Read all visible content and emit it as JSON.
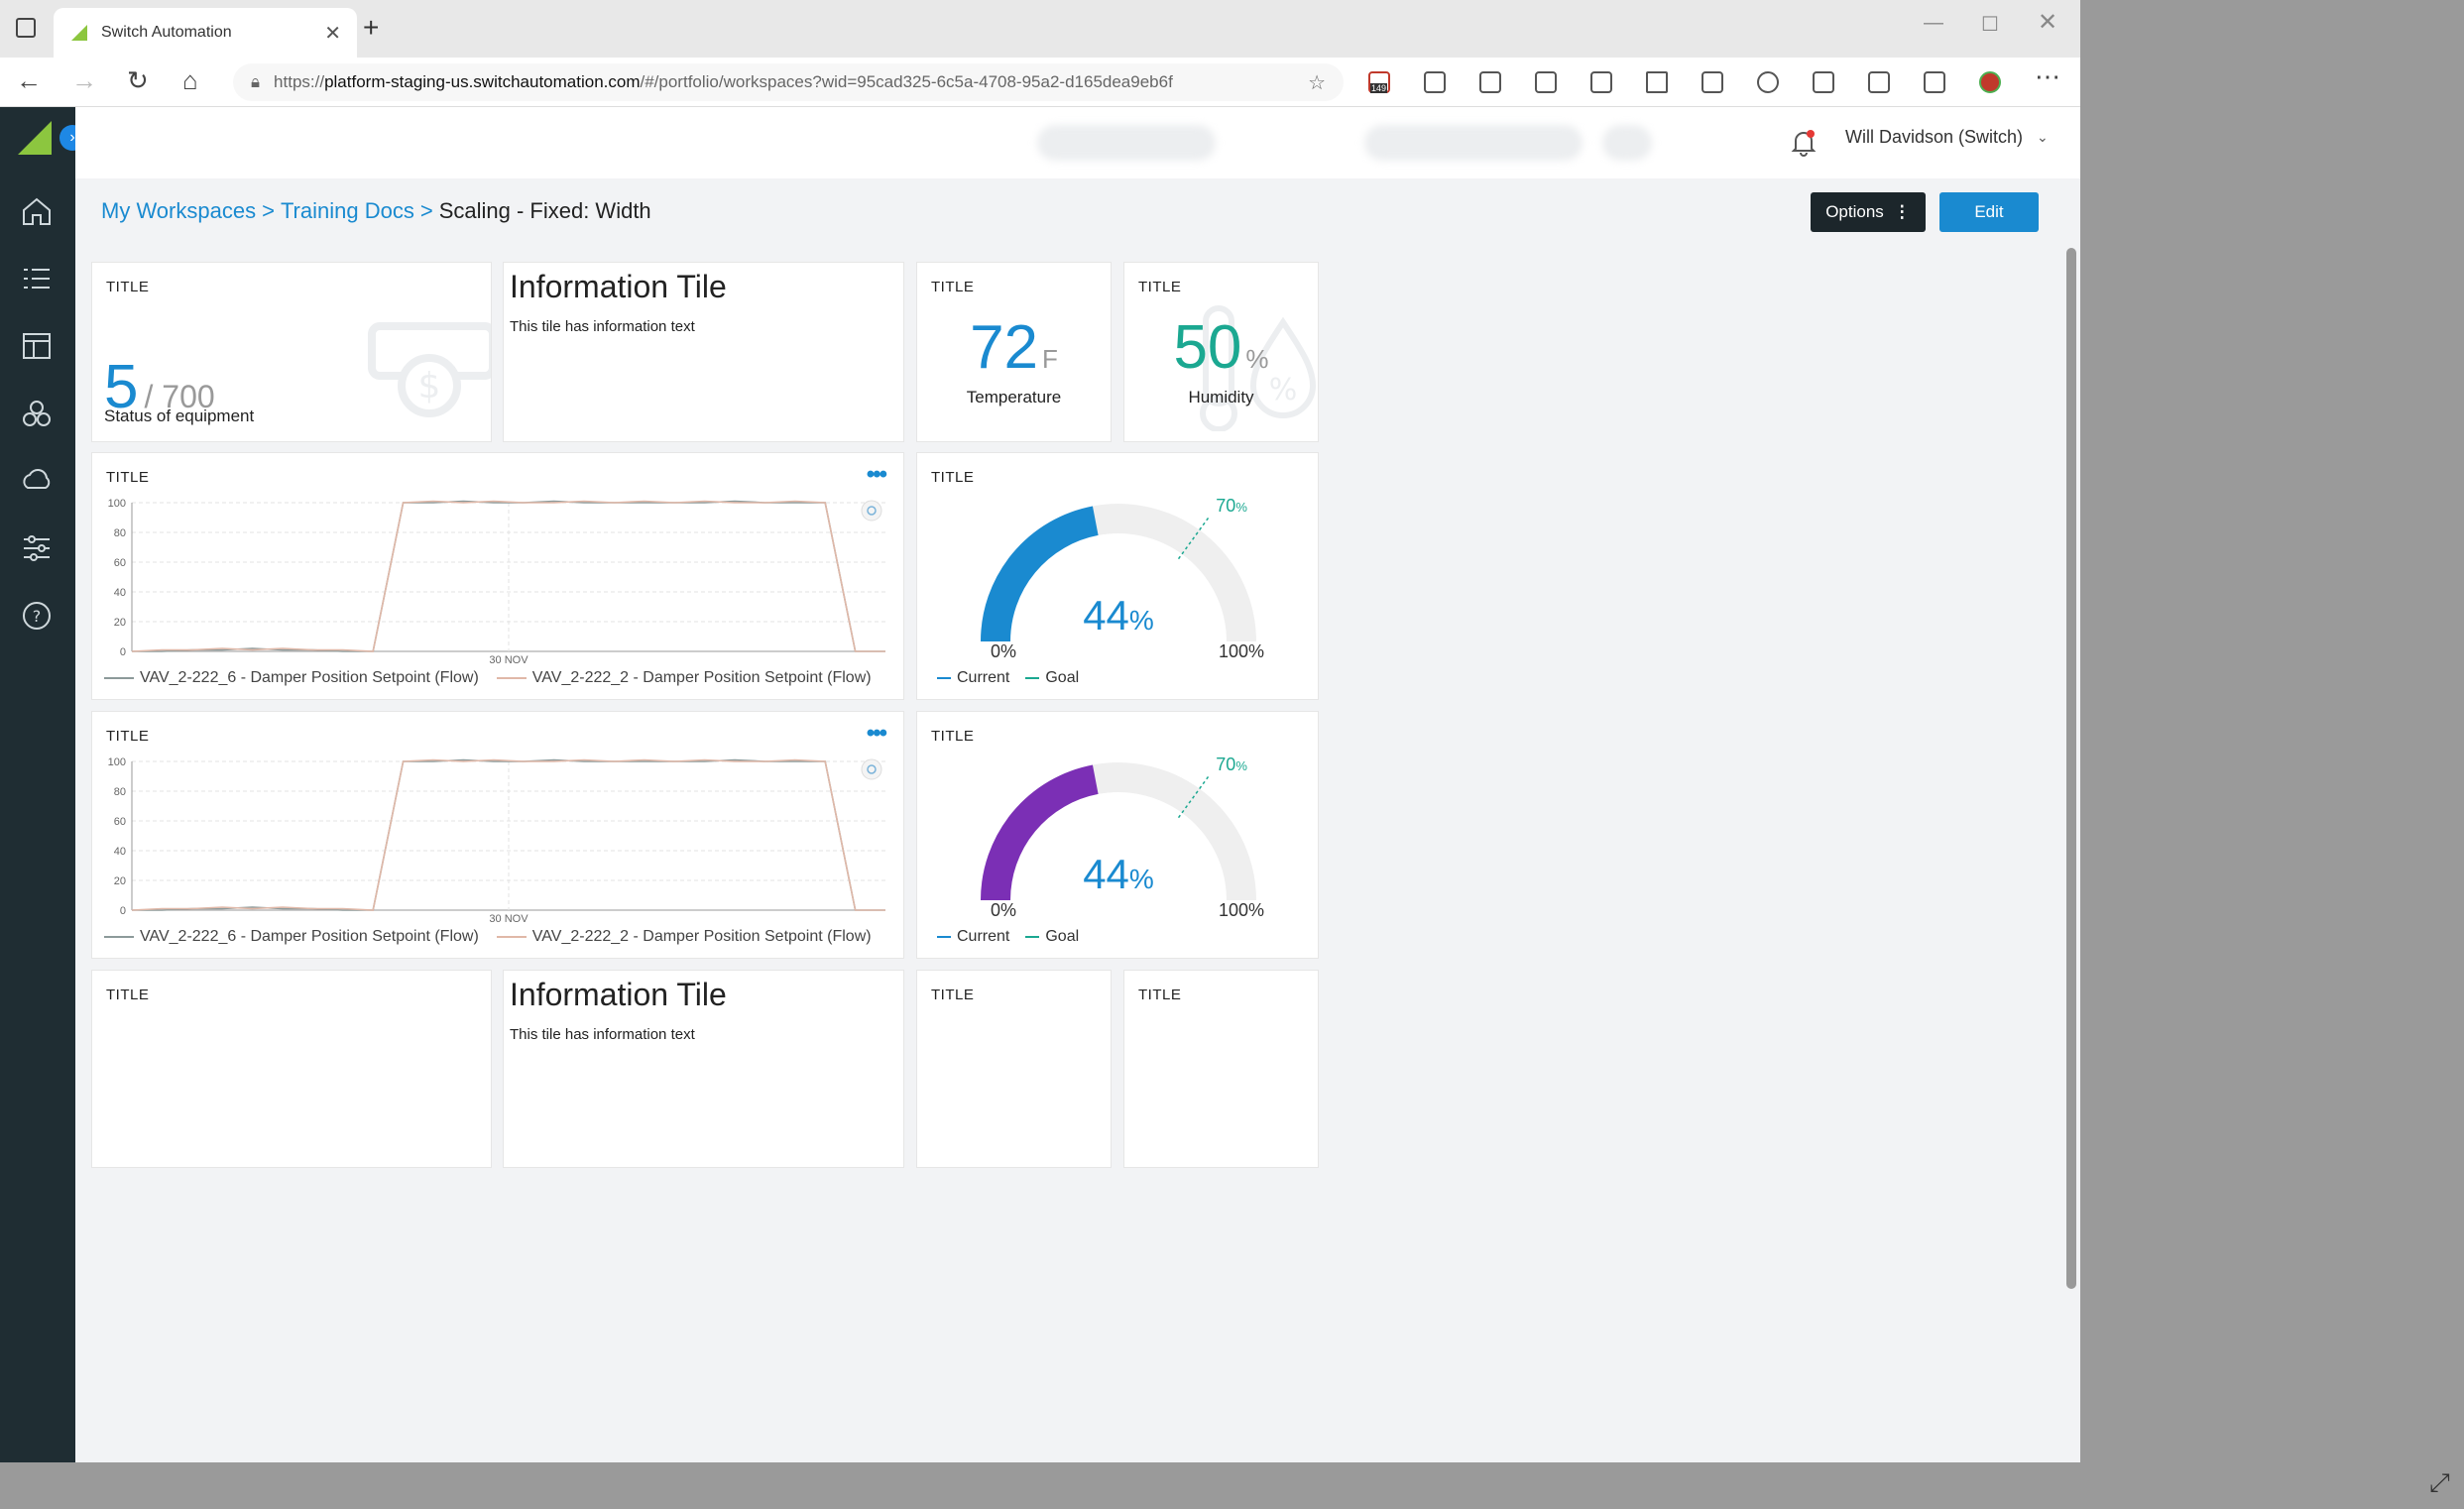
{
  "browser": {
    "tab_title": "Switch Automation",
    "url_prefix": "https://",
    "url_host": "platform-staging-us.switchautomation.com",
    "url_path": "/#/portfolio/workspaces?wid=95cad325-6c5a-4708-95a2-d165dea9eb6f",
    "badge_count": "149"
  },
  "topbar": {
    "user": "Will Davidson (Switch)"
  },
  "breadcrumb": {
    "root": "My Workspaces",
    "folder": "Training Docs",
    "current": "Scaling - Fixed: Width"
  },
  "actions": {
    "options": "Options",
    "edit": "Edit"
  },
  "tiles": {
    "equipment": {
      "title": "TITLE",
      "value": "5",
      "total": "/ 700",
      "label": "Status of equipment"
    },
    "info": {
      "heading": "Information Tile",
      "text": "This tile has information text"
    },
    "temperature": {
      "title": "TITLE",
      "value": "72",
      "unit": "F",
      "label": "Temperature"
    },
    "humidity": {
      "title": "TITLE",
      "value": "50",
      "unit": "%",
      "label": "Humidity"
    },
    "bottom_titles": [
      "TITLE",
      "TITLE",
      "TITLE"
    ]
  },
  "line_charts": [
    {
      "title": "TITLE",
      "color_a": "#8c9a9a",
      "color_b": "#e0b8a8"
    },
    {
      "title": "TITLE",
      "color_a": "#8c9a9a",
      "color_b": "#e0b8a8"
    }
  ],
  "gauges": [
    {
      "title": "TITLE",
      "color": "#1a8ad0"
    },
    {
      "title": "TITLE",
      "color": "#7b2fb5"
    }
  ],
  "chart_data": [
    {
      "type": "line",
      "title": "TITLE",
      "ylim": [
        0,
        100
      ],
      "yticks": [
        "100",
        "80",
        "60",
        "40",
        "20",
        "0"
      ],
      "xtick": "30 NOV",
      "x": [
        0,
        4,
        8,
        12,
        16,
        20,
        24,
        28,
        32,
        36,
        40,
        44,
        48,
        52,
        56,
        60,
        64,
        68,
        72,
        76,
        80,
        84,
        88,
        92,
        96,
        100
      ],
      "series": [
        {
          "name": "VAV_2-222_6 - Damper Position Setpoint (Flow)",
          "values": [
            0,
            0,
            1,
            1,
            2,
            1,
            1,
            0,
            0,
            100,
            100,
            101,
            100,
            100,
            101,
            100,
            100,
            100,
            100,
            100,
            101,
            100,
            100,
            100,
            0,
            0
          ]
        },
        {
          "name": "VAV_2-222_2 - Damper Position Setpoint (Flow)",
          "values": [
            0,
            1,
            1,
            2,
            1,
            2,
            1,
            1,
            0,
            100,
            101,
            100,
            101,
            100,
            100,
            101,
            100,
            101,
            100,
            101,
            100,
            100,
            101,
            100,
            0,
            0
          ]
        }
      ]
    },
    {
      "type": "line",
      "title": "TITLE",
      "ylim": [
        0,
        100
      ],
      "yticks": [
        "100",
        "80",
        "60",
        "40",
        "20",
        "0"
      ],
      "xtick": "30 NOV",
      "x": [
        0,
        4,
        8,
        12,
        16,
        20,
        24,
        28,
        32,
        36,
        40,
        44,
        48,
        52,
        56,
        60,
        64,
        68,
        72,
        76,
        80,
        84,
        88,
        92,
        96,
        100
      ],
      "series": [
        {
          "name": "VAV_2-222_6 - Damper Position Setpoint (Flow)",
          "values": [
            0,
            0,
            1,
            1,
            2,
            1,
            1,
            0,
            0,
            100,
            100,
            101,
            100,
            100,
            101,
            100,
            100,
            100,
            100,
            100,
            101,
            100,
            100,
            100,
            0,
            0
          ]
        },
        {
          "name": "VAV_2-222_2 - Damper Position Setpoint (Flow)",
          "values": [
            0,
            1,
            1,
            2,
            1,
            2,
            1,
            1,
            0,
            100,
            101,
            100,
            101,
            100,
            100,
            101,
            100,
            101,
            100,
            101,
            100,
            100,
            101,
            100,
            0,
            0
          ]
        }
      ]
    },
    {
      "type": "gauge",
      "title": "TITLE",
      "current": 44,
      "goal": 70,
      "min_label": "0%",
      "max_label": "100%",
      "value_label": "44",
      "goal_label": "70",
      "legend": [
        "Current",
        "Goal"
      ]
    },
    {
      "type": "gauge",
      "title": "TITLE",
      "current": 44,
      "goal": 70,
      "min_label": "0%",
      "max_label": "100%",
      "value_label": "44",
      "goal_label": "70",
      "legend": [
        "Current",
        "Goal"
      ]
    }
  ]
}
